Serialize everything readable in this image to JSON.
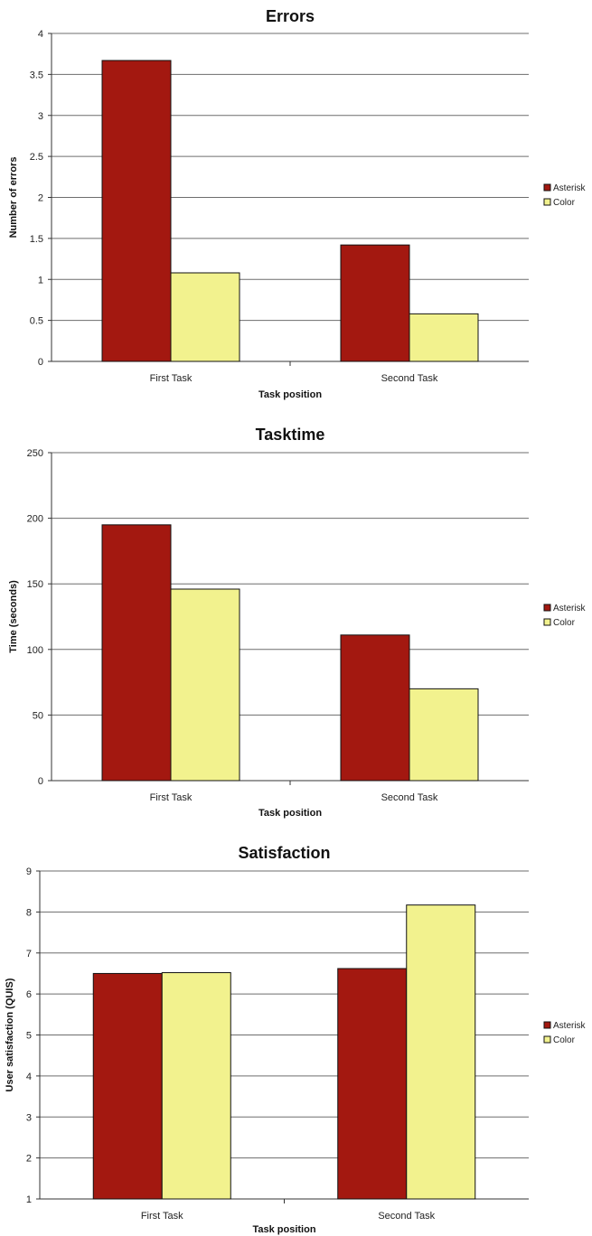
{
  "chart_data": [
    {
      "type": "bar",
      "title": "Errors",
      "xlabel": "Task position",
      "ylabel": "Number of errors",
      "categories": [
        "First Task",
        "Second Task"
      ],
      "ylim": [
        0,
        4
      ],
      "yticks": [
        "0",
        "0.5",
        "1",
        "1.5",
        "2",
        "2.5",
        "3",
        "3.5",
        "4"
      ],
      "series": [
        {
          "name": "Asterisk",
          "color": "#a31810",
          "values": [
            3.67,
            1.42
          ]
        },
        {
          "name": "Color",
          "color": "#f2f28e",
          "values": [
            1.08,
            0.58
          ]
        }
      ],
      "grid": true,
      "legend": "right"
    },
    {
      "type": "bar",
      "title": "Tasktime",
      "xlabel": "Task position",
      "ylabel": "Time (seconds)",
      "categories": [
        "First Task",
        "Second Task"
      ],
      "ylim": [
        0,
        250
      ],
      "yticks": [
        "0",
        "50",
        "100",
        "150",
        "200",
        "250"
      ],
      "series": [
        {
          "name": "Asterisk",
          "color": "#a31810",
          "values": [
            195,
            111
          ]
        },
        {
          "name": "Color",
          "color": "#f2f28e",
          "values": [
            146,
            70
          ]
        }
      ],
      "grid": true,
      "legend": "right"
    },
    {
      "type": "bar",
      "title": "Satisfaction",
      "xlabel": "Task position",
      "ylabel": "User satisfaction (QUIS)",
      "categories": [
        "First Task",
        "Second Task"
      ],
      "ylim": [
        1,
        9
      ],
      "yticks": [
        "1",
        "2",
        "3",
        "4",
        "5",
        "6",
        "7",
        "8",
        "9"
      ],
      "series": [
        {
          "name": "Asterisk",
          "color": "#a31810",
          "values": [
            6.5,
            6.62
          ]
        },
        {
          "name": "Color",
          "color": "#f2f28e",
          "values": [
            6.52,
            8.17
          ]
        }
      ],
      "grid": true,
      "legend": "right"
    }
  ]
}
